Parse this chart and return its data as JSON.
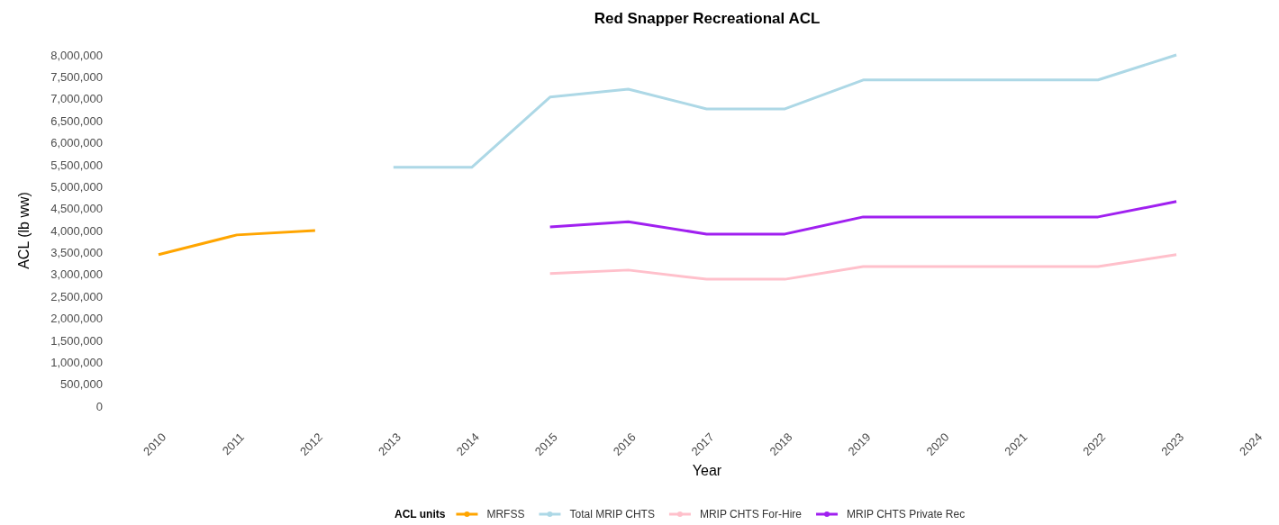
{
  "chart_data": {
    "type": "line",
    "title": "Red Snapper Recreational ACL",
    "xlabel": "Year",
    "ylabel": "ACL (lb ww)",
    "legend_title": "ACL units",
    "categories": [
      "2010",
      "2011",
      "2012",
      "2013",
      "2014",
      "2015",
      "2016",
      "2017",
      "2018",
      "2019",
      "2020",
      "2021",
      "2022",
      "2023",
      "2024"
    ],
    "series": [
      {
        "name": "MRFSS",
        "color": "#ffa500",
        "values": [
          3450000,
          3900000,
          4000000,
          null,
          null,
          null,
          null,
          null,
          null,
          null,
          null,
          null,
          null,
          null,
          null
        ]
      },
      {
        "name": "Total MRIP CHTS",
        "color": "#add8e6",
        "values": [
          null,
          null,
          null,
          5440000,
          5440000,
          7040000,
          7220000,
          6770000,
          6770000,
          7430000,
          7430000,
          7430000,
          7430000,
          8000000,
          null
        ]
      },
      {
        "name": "MRIP CHTS For-Hire",
        "color": "#ffc0cb",
        "values": [
          null,
          null,
          null,
          null,
          null,
          3020000,
          3100000,
          2890000,
          2890000,
          3180000,
          3180000,
          3180000,
          3180000,
          3450000,
          null
        ]
      },
      {
        "name": "MRIP CHTS Private Rec",
        "color": "#a020f0",
        "values": [
          null,
          null,
          null,
          null,
          null,
          4080000,
          4200000,
          3920000,
          3920000,
          4310000,
          4310000,
          4310000,
          4310000,
          4660000,
          null
        ]
      }
    ],
    "ylim": [
      0,
      8000000
    ],
    "yticks": [
      {
        "value": 0,
        "label": "0"
      },
      {
        "value": 500000,
        "label": "500,000"
      },
      {
        "value": 1000000,
        "label": "1,000,000"
      },
      {
        "value": 1500000,
        "label": "1,500,000"
      },
      {
        "value": 2000000,
        "label": "2,000,000"
      },
      {
        "value": 2500000,
        "label": "2,500,000"
      },
      {
        "value": 3000000,
        "label": "3,000,000"
      },
      {
        "value": 3500000,
        "label": "3,500,000"
      },
      {
        "value": 4000000,
        "label": "4,000,000"
      },
      {
        "value": 4500000,
        "label": "4,500,000"
      },
      {
        "value": 5000000,
        "label": "5,000,000"
      },
      {
        "value": 5500000,
        "label": "5,500,000"
      },
      {
        "value": 6000000,
        "label": "6,000,000"
      },
      {
        "value": 6500000,
        "label": "6,500,000"
      },
      {
        "value": 7000000,
        "label": "7,000,000"
      },
      {
        "value": 7500000,
        "label": "7,500,000"
      },
      {
        "value": 8000000,
        "label": "8,000,000"
      }
    ],
    "legend": "bottom",
    "grid": false,
    "marker": "none",
    "line_style": "solid"
  }
}
